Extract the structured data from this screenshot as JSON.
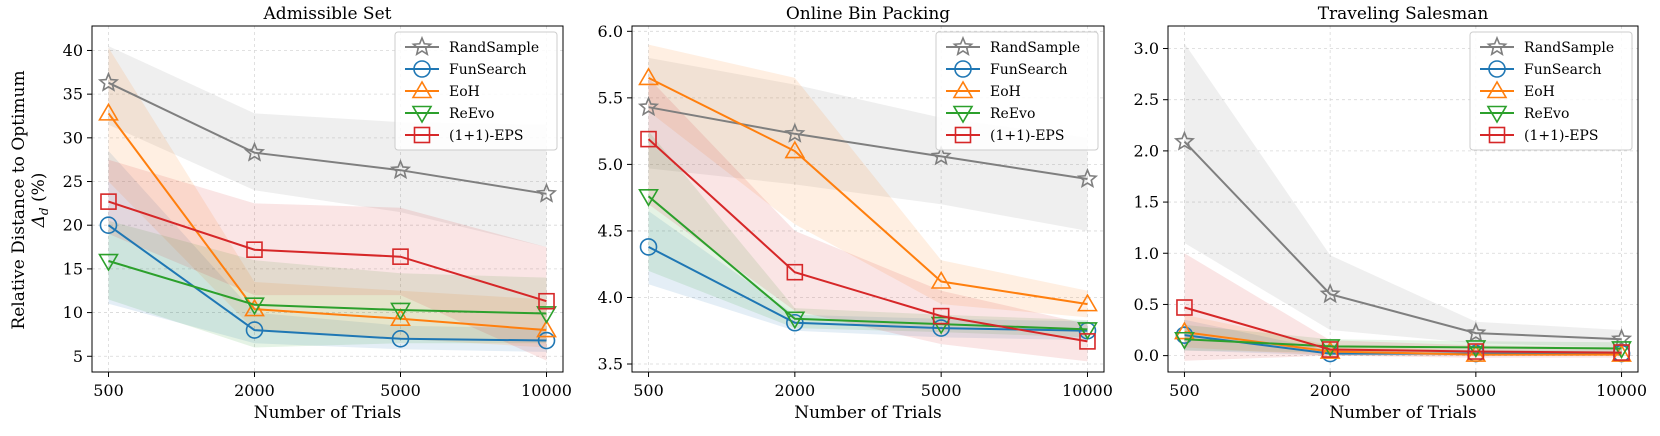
{
  "ylabel_line1": "Relative Distance to Optimum",
  "ylabel_line2": "Δ",
  "ylabel_sub": "d",
  "ylabel_unit": " (%)",
  "xlabel": "Number of Trials",
  "legend": [
    "RandSample",
    "FunSearch",
    "EoH",
    "ReEvo",
    "(1+1)-EPS"
  ],
  "colors": {
    "RandSample": "#7f7f7f",
    "FunSearch": "#1f77b4",
    "EoH": "#ff7f0e",
    "ReEvo": "#2ca02c",
    "(1+1)-EPS": "#d62728"
  },
  "chart_data": [
    {
      "type": "line",
      "title": "Admissible Set",
      "categories": [
        "500",
        "2000",
        "5000",
        "10000"
      ],
      "ylim": [
        3.2,
        42.8
      ],
      "yticks": [
        5,
        10,
        15,
        20,
        25,
        30,
        35,
        40
      ],
      "grid": true,
      "legend_position": "top-right",
      "series": [
        {
          "name": "RandSample",
          "marker": "star",
          "values": [
            36.3,
            28.3,
            26.3,
            23.6
          ],
          "lower": [
            31.5,
            24.0,
            21.5,
            17.5
          ],
          "upper": [
            40.5,
            32.8,
            31.8,
            31.5
          ]
        },
        {
          "name": "FunSearch",
          "marker": "circle",
          "values": [
            20.0,
            8.0,
            7.0,
            6.8
          ],
          "lower": [
            11.0,
            6.5,
            5.8,
            5.5
          ],
          "upper": [
            28.5,
            10.0,
            8.5,
            8.2
          ]
        },
        {
          "name": "EoH",
          "marker": "triangle-up",
          "values": [
            32.8,
            10.4,
            9.3,
            8.0
          ],
          "lower": [
            25.0,
            8.0,
            7.0,
            6.0
          ],
          "upper": [
            40.3,
            13.5,
            12.5,
            11.5
          ]
        },
        {
          "name": "ReEvo",
          "marker": "triangle-down",
          "values": [
            15.9,
            10.9,
            10.3,
            9.9
          ],
          "lower": [
            11.5,
            6.0,
            6.5,
            6.5
          ],
          "upper": [
            20.5,
            16.0,
            14.5,
            14.0
          ]
        },
        {
          "name": "(1+1)-EPS",
          "marker": "square",
          "values": [
            22.7,
            17.2,
            16.4,
            11.3
          ],
          "lower": [
            19.0,
            12.0,
            12.0,
            4.5
          ],
          "upper": [
            27.5,
            22.5,
            22.0,
            17.5
          ]
        }
      ]
    },
    {
      "type": "line",
      "title": "Online Bin Packing",
      "categories": [
        "500",
        "2000",
        "5000",
        "10000"
      ],
      "ylim": [
        3.44,
        6.04
      ],
      "yticks": [
        3.5,
        4.0,
        4.5,
        5.0,
        5.5,
        6.0
      ],
      "grid": true,
      "legend_position": "top-right",
      "series": [
        {
          "name": "RandSample",
          "marker": "star",
          "values": [
            5.43,
            5.23,
            5.06,
            4.89
          ],
          "lower": [
            4.97,
            4.85,
            4.7,
            4.5
          ],
          "upper": [
            5.8,
            5.6,
            5.35,
            5.2
          ]
        },
        {
          "name": "FunSearch",
          "marker": "circle",
          "values": [
            4.38,
            3.81,
            3.77,
            3.75
          ],
          "lower": [
            4.1,
            3.75,
            3.7,
            3.68
          ],
          "upper": [
            4.65,
            3.87,
            3.84,
            3.82
          ]
        },
        {
          "name": "EoH",
          "marker": "triangle-up",
          "values": [
            5.65,
            5.1,
            4.12,
            3.95
          ],
          "lower": [
            5.4,
            4.55,
            3.95,
            3.85
          ],
          "upper": [
            5.9,
            5.65,
            4.28,
            4.05
          ]
        },
        {
          "name": "ReEvo",
          "marker": "triangle-down",
          "values": [
            4.76,
            3.84,
            3.8,
            3.76
          ],
          "lower": [
            4.2,
            3.77,
            3.74,
            3.7
          ],
          "upper": [
            5.25,
            3.92,
            3.87,
            3.83
          ]
        },
        {
          "name": "(1+1)-EPS",
          "marker": "square",
          "values": [
            5.19,
            4.19,
            3.86,
            3.67
          ],
          "lower": [
            4.7,
            3.9,
            3.65,
            3.52
          ],
          "upper": [
            5.65,
            4.5,
            4.05,
            3.8
          ]
        }
      ]
    },
    {
      "type": "line",
      "title": "Traveling Salesman",
      "categories": [
        "500",
        "2000",
        "5000",
        "10000"
      ],
      "ylim": [
        -0.16,
        3.22
      ],
      "yticks": [
        0.0,
        0.5,
        1.0,
        1.5,
        2.0,
        2.5,
        3.0
      ],
      "grid": true,
      "legend_position": "top-right",
      "series": [
        {
          "name": "RandSample",
          "marker": "star",
          "values": [
            2.09,
            0.6,
            0.22,
            0.16
          ],
          "lower": [
            1.1,
            0.25,
            0.12,
            0.08
          ],
          "upper": [
            3.05,
            0.98,
            0.33,
            0.25
          ]
        },
        {
          "name": "FunSearch",
          "marker": "circle",
          "values": [
            0.2,
            0.02,
            0.02,
            0.02
          ],
          "lower": [
            0.05,
            0.0,
            0.0,
            0.0
          ],
          "upper": [
            0.35,
            0.05,
            0.05,
            0.05
          ]
        },
        {
          "name": "EoH",
          "marker": "triangle-up",
          "values": [
            0.23,
            0.04,
            0.01,
            0.01
          ],
          "lower": [
            0.08,
            0.0,
            0.0,
            0.0
          ],
          "upper": [
            0.4,
            0.1,
            0.05,
            0.04
          ]
        },
        {
          "name": "ReEvo",
          "marker": "triangle-down",
          "values": [
            0.16,
            0.09,
            0.08,
            0.07
          ],
          "lower": [
            0.05,
            0.03,
            0.03,
            0.03
          ],
          "upper": [
            0.3,
            0.16,
            0.14,
            0.13
          ]
        },
        {
          "name": "(1+1)-EPS",
          "marker": "square",
          "values": [
            0.47,
            0.06,
            0.04,
            0.03
          ],
          "lower": [
            -0.05,
            0.0,
            -0.02,
            -0.02
          ],
          "upper": [
            1.0,
            0.15,
            0.1,
            0.08
          ]
        }
      ]
    }
  ]
}
